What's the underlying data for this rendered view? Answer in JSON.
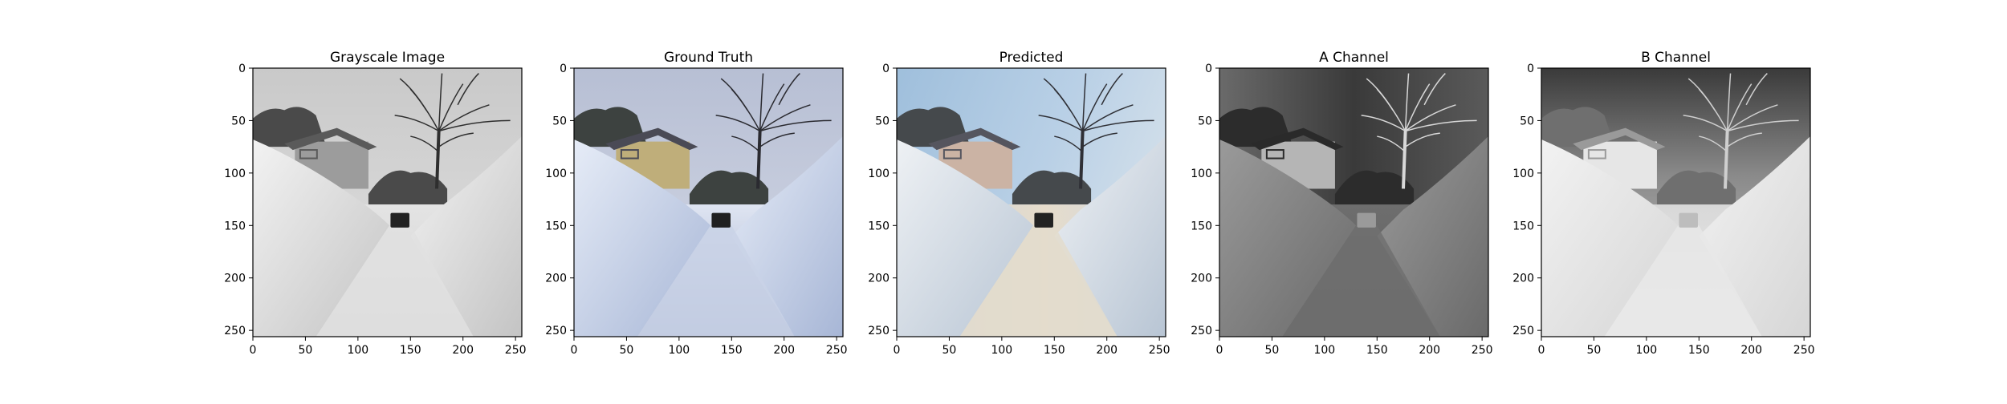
{
  "chart_data": {
    "type": "image-grid",
    "axes_extent": [
      0,
      256
    ],
    "x_ticks": [
      0,
      50,
      100,
      150,
      200,
      250
    ],
    "y_ticks": [
      0,
      50,
      100,
      150,
      200,
      250
    ],
    "panels": [
      {
        "title": "Grayscale Image",
        "tone": "gray"
      },
      {
        "title": "Ground Truth",
        "tone": "truth"
      },
      {
        "title": "Predicted",
        "tone": "pred"
      },
      {
        "title": "A Channel",
        "tone": "achan"
      },
      {
        "title": "B Channel",
        "tone": "bchan"
      }
    ]
  }
}
